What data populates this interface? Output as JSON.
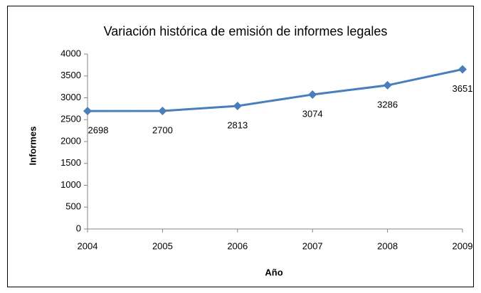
{
  "chart_data": {
    "type": "line",
    "title": "Variación histórica de emisión de informes legales",
    "xlabel": "Año",
    "ylabel": "Informes",
    "x": [
      2004,
      2005,
      2006,
      2007,
      2008,
      2009
    ],
    "series": [
      {
        "name": "Informes",
        "color": "#4a7ebb",
        "values": [
          2698,
          2700,
          2813,
          3074,
          3286,
          3651
        ]
      }
    ],
    "xlim": [
      2004,
      2009
    ],
    "xticks": [
      2004,
      2005,
      2006,
      2007,
      2008,
      2009
    ],
    "ylim": [
      0,
      4000
    ],
    "yticks": [
      0,
      500,
      1000,
      1500,
      2000,
      2500,
      3000,
      3500,
      4000
    ],
    "grid": false,
    "data_labels": true
  }
}
